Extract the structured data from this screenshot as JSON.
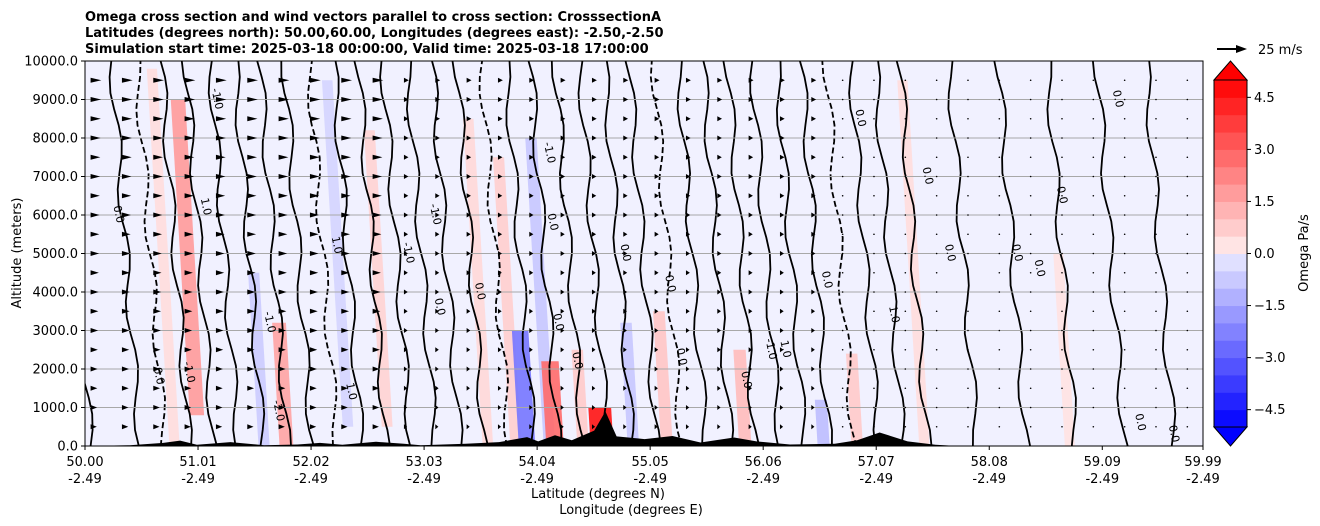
{
  "chart_data": {
    "type": "heatmap",
    "title_lines": [
      "Omega cross section and wind vectors parallel to cross section: CrosssectionA",
      "Latitudes (degrees north): 50.00,60.00, Longitudes (degrees east): -2.50,-2.50",
      "Simulation start time: 2025-03-18 00:00:00, Valid time: 2025-03-18 17:00:00"
    ],
    "ylabel": "Altitude (meters)",
    "xlabel_lines": [
      "Latitude (degrees N)",
      "Longitude (degrees E)"
    ],
    "ylim": [
      0,
      10000
    ],
    "y_ticks": [
      {
        "value": 0,
        "label": "0.0"
      },
      {
        "value": 1000,
        "label": "1000.0"
      },
      {
        "value": 2000,
        "label": "2000.0"
      },
      {
        "value": 3000,
        "label": "3000.0"
      },
      {
        "value": 4000,
        "label": "4000.0"
      },
      {
        "value": 5000,
        "label": "5000.0"
      },
      {
        "value": 6000,
        "label": "6000.0"
      },
      {
        "value": 7000,
        "label": "7000.0"
      },
      {
        "value": 8000,
        "label": "8000.0"
      },
      {
        "value": 9000,
        "label": "9000.0"
      },
      {
        "value": 10000,
        "label": "10000.0"
      }
    ],
    "xlim": [
      50.0,
      59.99
    ],
    "x_ticks": [
      {
        "value": 50.0,
        "lat": "50.00",
        "lon": "-2.49"
      },
      {
        "value": 51.01,
        "lat": "51.01",
        "lon": "-2.49"
      },
      {
        "value": 52.02,
        "lat": "52.02",
        "lon": "-2.49"
      },
      {
        "value": 53.03,
        "lat": "53.03",
        "lon": "-2.49"
      },
      {
        "value": 54.04,
        "lat": "54.04",
        "lon": "-2.49"
      },
      {
        "value": 55.05,
        "lat": "55.05",
        "lon": "-2.49"
      },
      {
        "value": 56.06,
        "lat": "56.06",
        "lon": "-2.49"
      },
      {
        "value": 57.07,
        "lat": "57.07",
        "lon": "-2.49"
      },
      {
        "value": 58.08,
        "lat": "58.08",
        "lon": "-2.49"
      },
      {
        "value": 59.09,
        "lat": "59.09",
        "lon": "-2.49"
      },
      {
        "value": 59.99,
        "lat": "59.99",
        "lon": "-2.49"
      }
    ],
    "colorbar": {
      "label": "Omega Pa/s",
      "range": [
        -5.0,
        5.0
      ],
      "step": 0.5,
      "ticks": [
        {
          "value": 4.5,
          "label": "4.5"
        },
        {
          "value": 3.0,
          "label": "3.0"
        },
        {
          "value": 1.5,
          "label": "1.5"
        },
        {
          "value": 0.0,
          "label": "0.0"
        },
        {
          "value": -1.5,
          "label": "−1.5"
        },
        {
          "value": -3.0,
          "label": "−3.0"
        },
        {
          "value": -4.5,
          "label": "−4.5"
        }
      ]
    },
    "quiver_key": {
      "label": "25 m/s",
      "speed": 25
    },
    "omega_cells": [
      {
        "lat": 50.8,
        "z0": 0,
        "z1": 9800,
        "omega": 0.4
      },
      {
        "lat": 51.0,
        "z0": 800,
        "z1": 9000,
        "omega": 1.8
      },
      {
        "lat": 51.6,
        "z0": 0,
        "z1": 4500,
        "omega": -0.7
      },
      {
        "lat": 51.8,
        "z0": 0,
        "z1": 3200,
        "omega": 1.6
      },
      {
        "lat": 52.35,
        "z0": 500,
        "z1": 9500,
        "omega": -0.5
      },
      {
        "lat": 52.7,
        "z0": 500,
        "z1": 8200,
        "omega": 0.6
      },
      {
        "lat": 53.6,
        "z0": 0,
        "z1": 8500,
        "omega": 0.5
      },
      {
        "lat": 53.85,
        "z0": 0,
        "z1": 7500,
        "omega": 0.7
      },
      {
        "lat": 53.95,
        "z0": 0,
        "z1": 3000,
        "omega": -2.5
      },
      {
        "lat": 54.15,
        "z0": 0,
        "z1": 8000,
        "omega": -0.8
      },
      {
        "lat": 54.2,
        "z0": 0,
        "z1": 2200,
        "omega": 2.8
      },
      {
        "lat": 54.45,
        "z0": 0,
        "z1": 2500,
        "omega": 0.8
      },
      {
        "lat": 54.62,
        "z0": 0,
        "z1": 1000,
        "omega": 4.6
      },
      {
        "lat": 54.9,
        "z0": 0,
        "z1": 3200,
        "omega": -0.8
      },
      {
        "lat": 55.2,
        "z0": 0,
        "z1": 3500,
        "omega": 0.9
      },
      {
        "lat": 55.9,
        "z0": 0,
        "z1": 2500,
        "omega": 1.1
      },
      {
        "lat": 56.6,
        "z0": 0,
        "z1": 1200,
        "omega": -1.0
      },
      {
        "lat": 56.9,
        "z0": 0,
        "z1": 2400,
        "omega": 0.8
      },
      {
        "lat": 57.5,
        "z0": 0,
        "z1": 9500,
        "omega": 0.4
      },
      {
        "lat": 58.8,
        "z0": 0,
        "z1": 5000,
        "omega": 0.3
      }
    ],
    "contour_labels": [
      {
        "lat": 50.27,
        "z": 6000,
        "text": "0.0"
      },
      {
        "lat": 50.63,
        "z": 1800,
        "text": "0.0"
      },
      {
        "lat": 50.9,
        "z": 1900,
        "text": "-1.0"
      },
      {
        "lat": 51.05,
        "z": 6200,
        "text": "1.0"
      },
      {
        "lat": 51.15,
        "z": 9000,
        "text": "-1.0"
      },
      {
        "lat": 51.62,
        "z": 3200,
        "text": "-1.0"
      },
      {
        "lat": 51.7,
        "z": 900,
        "text": "-2.0"
      },
      {
        "lat": 52.22,
        "z": 5200,
        "text": "1.0"
      },
      {
        "lat": 52.35,
        "z": 1400,
        "text": "1.0"
      },
      {
        "lat": 52.86,
        "z": 5000,
        "text": "-1.0"
      },
      {
        "lat": 53.1,
        "z": 6000,
        "text": "-1.0"
      },
      {
        "lat": 53.14,
        "z": 3600,
        "text": "0.0"
      },
      {
        "lat": 53.5,
        "z": 4000,
        "text": "0.0"
      },
      {
        "lat": 54.12,
        "z": 7600,
        "text": "-1.0"
      },
      {
        "lat": 54.15,
        "z": 5800,
        "text": "0.0"
      },
      {
        "lat": 54.2,
        "z": 3200,
        "text": "0.0"
      },
      {
        "lat": 54.37,
        "z": 2200,
        "text": "0.0"
      },
      {
        "lat": 54.8,
        "z": 5000,
        "text": "0.0"
      },
      {
        "lat": 55.2,
        "z": 4200,
        "text": "0.0"
      },
      {
        "lat": 55.3,
        "z": 2300,
        "text": "0.0"
      },
      {
        "lat": 55.88,
        "z": 1700,
        "text": "0.0"
      },
      {
        "lat": 56.1,
        "z": 2500,
        "text": "-1.0"
      },
      {
        "lat": 56.23,
        "z": 2500,
        "text": "1.0"
      },
      {
        "lat": 56.6,
        "z": 4300,
        "text": "0.0"
      },
      {
        "lat": 56.9,
        "z": 8500,
        "text": "0.0"
      },
      {
        "lat": 57.2,
        "z": 3400,
        "text": "1.0"
      },
      {
        "lat": 57.5,
        "z": 7000,
        "text": "0.0"
      },
      {
        "lat": 57.7,
        "z": 5000,
        "text": "0.0"
      },
      {
        "lat": 58.3,
        "z": 5000,
        "text": "0.0"
      },
      {
        "lat": 58.5,
        "z": 4600,
        "text": "0.0"
      },
      {
        "lat": 58.7,
        "z": 6500,
        "text": "0.0"
      },
      {
        "lat": 59.2,
        "z": 9000,
        "text": "0.0"
      },
      {
        "lat": 59.4,
        "z": 600,
        "text": "0.0"
      },
      {
        "lat": 59.7,
        "z": 300,
        "text": "0.0"
      }
    ],
    "terrain": [
      [
        50.0,
        0
      ],
      [
        50.4,
        20
      ],
      [
        50.7,
        80
      ],
      [
        50.85,
        140
      ],
      [
        51.0,
        30
      ],
      [
        51.3,
        100
      ],
      [
        51.6,
        20
      ],
      [
        51.9,
        40
      ],
      [
        52.1,
        80
      ],
      [
        52.3,
        30
      ],
      [
        52.6,
        110
      ],
      [
        52.85,
        60
      ],
      [
        53.0,
        20
      ],
      [
        53.4,
        60
      ],
      [
        53.7,
        100
      ],
      [
        53.95,
        230
      ],
      [
        54.05,
        120
      ],
      [
        54.2,
        280
      ],
      [
        54.35,
        150
      ],
      [
        54.55,
        400
      ],
      [
        54.65,
        900
      ],
      [
        54.75,
        250
      ],
      [
        55.0,
        180
      ],
      [
        55.25,
        260
      ],
      [
        55.5,
        90
      ],
      [
        55.8,
        220
      ],
      [
        56.0,
        120
      ],
      [
        56.3,
        40
      ],
      [
        56.7,
        60
      ],
      [
        56.9,
        150
      ],
      [
        57.1,
        350
      ],
      [
        57.35,
        120
      ],
      [
        57.6,
        30
      ],
      [
        57.8,
        0
      ],
      [
        59.99,
        0
      ]
    ]
  }
}
